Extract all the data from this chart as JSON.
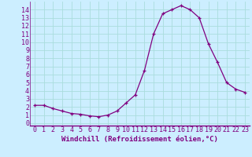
{
  "x": [
    0,
    1,
    2,
    3,
    4,
    5,
    6,
    7,
    8,
    9,
    10,
    11,
    12,
    13,
    14,
    15,
    16,
    17,
    18,
    19,
    20,
    21,
    22,
    23
  ],
  "y": [
    2.2,
    2.2,
    1.8,
    1.5,
    1.2,
    1.1,
    0.9,
    0.8,
    1.0,
    1.5,
    2.5,
    3.5,
    6.5,
    11.0,
    13.5,
    14.0,
    14.5,
    14.0,
    13.0,
    9.8,
    7.5,
    5.0,
    4.2,
    3.8
  ],
  "line_color": "#800080",
  "marker": "+",
  "background_color": "#cceeff",
  "grid_color": "#aadddd",
  "xlabel": "Windchill (Refroidissement éolien,°C)",
  "ylabel_ticks": [
    0,
    1,
    2,
    3,
    4,
    5,
    6,
    7,
    8,
    9,
    10,
    11,
    12,
    13,
    14
  ],
  "xlim": [
    -0.5,
    23.5
  ],
  "ylim": [
    -0.3,
    15.0
  ],
  "font_family": "monospace",
  "tick_fontsize": 6.0,
  "xlabel_fontsize": 6.5
}
